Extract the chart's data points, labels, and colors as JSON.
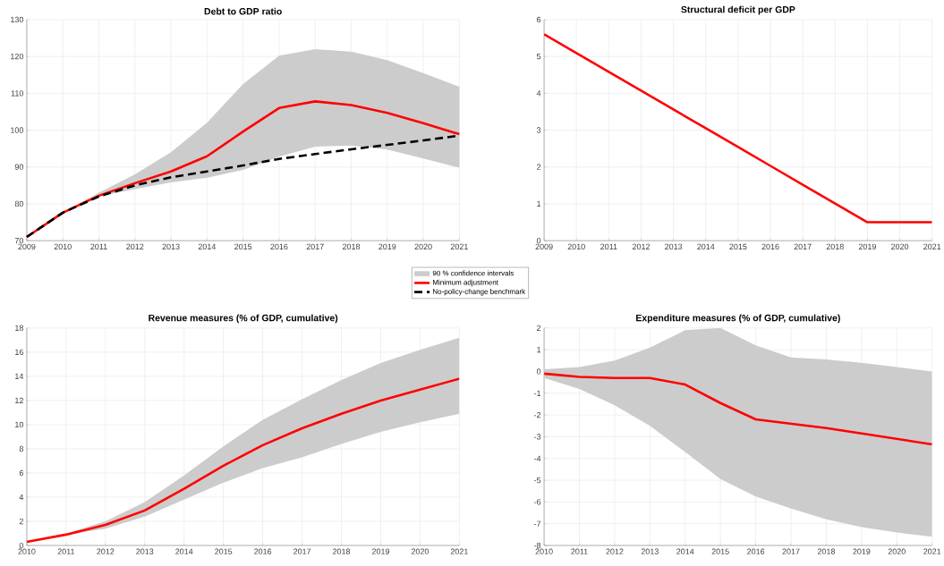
{
  "chart_data": [
    {
      "type": "line",
      "title": "Debt to GDP ratio",
      "x": [
        2009,
        2010,
        2011,
        2012,
        2013,
        2014,
        2015,
        2016,
        2017,
        2018,
        2019,
        2020,
        2021
      ],
      "xlim": [
        2009,
        2021
      ],
      "xticks": [
        2009,
        2010,
        2011,
        2012,
        2013,
        2014,
        2015,
        2016,
        2017,
        2018,
        2019,
        2020,
        2021
      ],
      "ylim": [
        70,
        130
      ],
      "yticks": [
        70,
        80,
        90,
        100,
        110,
        120,
        130
      ],
      "grid": true,
      "legend": "bottom right",
      "annotations": [
        "90 % confidence intervals"
      ],
      "series": [
        {
          "name": "Minimum adjustment",
          "color": "#ff0000",
          "line_style": "solid",
          "values": [
            71,
            77.6,
            82.2,
            85.6,
            88.8,
            92.9,
            99.6,
            106,
            107.8,
            106.8,
            104.7,
            101.9,
            98.9
          ],
          "upper": [
            71,
            77.6,
            83,
            88,
            94,
            102,
            112.5,
            120.2,
            122,
            121.3,
            119,
            115.5,
            111.8
          ],
          "lower": [
            71,
            77.6,
            82,
            84,
            85.8,
            87.1,
            89.2,
            92.8,
            95.5,
            95.8,
            94.7,
            92.3,
            89.8
          ]
        },
        {
          "name": "No-policy-change benchmark",
          "color": "#000000",
          "line_style": "dashed",
          "values": [
            71,
            77.6,
            82,
            85,
            87.2,
            88.8,
            90.4,
            92.2,
            93.5,
            94.8,
            96,
            97.2,
            98.5
          ]
        }
      ]
    },
    {
      "type": "line",
      "title": "Structural deficit per GDP",
      "x": [
        2009,
        2010,
        2011,
        2012,
        2013,
        2014,
        2015,
        2016,
        2017,
        2018,
        2019,
        2020,
        2021
      ],
      "xlim": [
        2009,
        2021
      ],
      "xticks": [
        2009,
        2010,
        2011,
        2012,
        2013,
        2014,
        2015,
        2016,
        2017,
        2018,
        2019,
        2020,
        2021
      ],
      "ylim": [
        0,
        6
      ],
      "yticks": [
        0,
        1,
        2,
        3,
        4,
        5,
        6
      ],
      "grid": true,
      "series": [
        {
          "color": "#ff0000",
          "values": [
            5.6,
            5.09,
            4.58,
            4.07,
            3.56,
            3.05,
            2.54,
            2.03,
            1.52,
            1.01,
            0.5,
            0.5,
            0.5
          ]
        }
      ]
    },
    {
      "type": "line",
      "title": "Revenue measures (% of GDP, cumulative)",
      "x": [
        2010,
        2011,
        2012,
        2013,
        2014,
        2015,
        2016,
        2017,
        2018,
        2019,
        2020,
        2021
      ],
      "xlim": [
        2010,
        2021
      ],
      "xticks": [
        2010,
        2011,
        2012,
        2013,
        2014,
        2015,
        2016,
        2017,
        2018,
        2019,
        2020,
        2021
      ],
      "ylim": [
        0,
        18
      ],
      "yticks": [
        0,
        2,
        4,
        6,
        8,
        10,
        12,
        14,
        16,
        18
      ],
      "grid": true,
      "series": [
        {
          "color": "#ff0000",
          "values": [
            0.3,
            0.9,
            1.7,
            2.9,
            4.7,
            6.6,
            8.3,
            9.7,
            10.9,
            12.0,
            12.9,
            13.8
          ],
          "upper": [
            0.3,
            1.0,
            2.0,
            3.6,
            5.8,
            8.2,
            10.4,
            12.1,
            13.7,
            15.1,
            16.2,
            17.2
          ],
          "lower": [
            0.3,
            0.9,
            1.4,
            2.4,
            3.8,
            5.2,
            6.4,
            7.3,
            8.4,
            9.4,
            10.2,
            10.9
          ]
        }
      ]
    },
    {
      "type": "line",
      "title": "Expenditure measures (% of GDP, cumulative)",
      "x": [
        2010,
        2011,
        2012,
        2013,
        2014,
        2015,
        2016,
        2017,
        2018,
        2019,
        2020,
        2021
      ],
      "xlim": [
        2010,
        2021
      ],
      "xticks": [
        2010,
        2011,
        2012,
        2013,
        2014,
        2015,
        2016,
        2017,
        2018,
        2019,
        2020,
        2021
      ],
      "ylim": [
        -8,
        2
      ],
      "yticks": [
        -8,
        -7,
        -6,
        -5,
        -4,
        -3,
        -2,
        -1,
        0,
        1,
        2
      ],
      "grid": true,
      "series": [
        {
          "color": "#ff0000",
          "values": [
            -0.1,
            -0.25,
            -0.3,
            -0.3,
            -0.6,
            -1.45,
            -2.2,
            -2.4,
            -2.6,
            -2.85,
            -3.1,
            -3.35
          ],
          "upper": [
            0.1,
            0.2,
            0.5,
            1.1,
            1.9,
            2.0,
            1.2,
            0.65,
            0.55,
            0.4,
            0.2,
            0.0
          ],
          "lower": [
            -0.3,
            -0.8,
            -1.55,
            -2.5,
            -3.7,
            -4.95,
            -5.75,
            -6.3,
            -6.8,
            -7.15,
            -7.4,
            -7.6
          ]
        }
      ]
    }
  ]
}
